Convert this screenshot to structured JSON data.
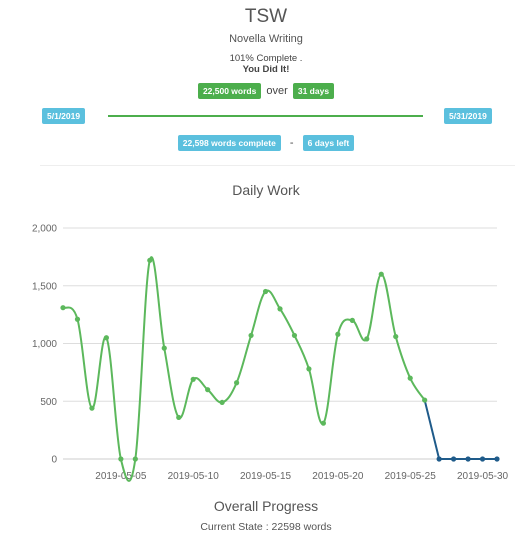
{
  "header": {
    "title": "TSW",
    "subtitle": "Novella Writing",
    "percent_complete": "101% Complete .",
    "congrats": "You Did It!"
  },
  "goal": {
    "words_badge": "22,500 words",
    "over_text": "over",
    "days_badge": "31 days",
    "start_date": "5/1/2019",
    "end_date": "5/31/2019"
  },
  "status": {
    "complete_badge": "22,598 words complete",
    "dash": "-",
    "left_badge": "6 days left"
  },
  "colors": {
    "green": "#4cae4c",
    "blue": "#5bc0de",
    "line_actual": "#5cb85c",
    "line_future": "#1f5b8a"
  },
  "chart_title": "Daily Work",
  "chart_data": {
    "type": "line",
    "title": "Daily Work",
    "xlabel": "",
    "ylabel": "",
    "ylim": [
      0,
      2000
    ],
    "y_ticks": [
      "0",
      "500",
      "1,000",
      "1,500",
      "2,000"
    ],
    "y_tick_values": [
      0,
      500,
      1000,
      1500,
      2000
    ],
    "x_ticks": [
      "2019-05-05",
      "2019-05-10",
      "2019-05-15",
      "2019-05-20",
      "2019-05-25",
      "2019-05-30"
    ],
    "x_tick_dates": [
      "2019-05-05",
      "2019-05-10",
      "2019-05-15",
      "2019-05-20",
      "2019-05-25",
      "2019-05-30"
    ],
    "x_range": [
      "2019-05-01",
      "2019-05-31"
    ],
    "grid": true,
    "series": [
      {
        "x": [
          "2019-05-01",
          "2019-05-02",
          "2019-05-03",
          "2019-05-04",
          "2019-05-05",
          "2019-05-06",
          "2019-05-07",
          "2019-05-08",
          "2019-05-09",
          "2019-05-10",
          "2019-05-11",
          "2019-05-12",
          "2019-05-13",
          "2019-05-14",
          "2019-05-15",
          "2019-05-16",
          "2019-05-17",
          "2019-05-18",
          "2019-05-19",
          "2019-05-20",
          "2019-05-21",
          "2019-05-22",
          "2019-05-23",
          "2019-05-24",
          "2019-05-25",
          "2019-05-26"
        ],
        "values": [
          1310,
          1210,
          440,
          1050,
          0,
          0,
          1720,
          960,
          360,
          690,
          600,
          490,
          660,
          1070,
          1450,
          1300,
          1070,
          780,
          310,
          1080,
          1200,
          1040,
          1600,
          1060,
          700,
          510
        ]
      },
      {
        "x": [
          "2019-05-26",
          "2019-05-27",
          "2019-05-28",
          "2019-05-29",
          "2019-05-30",
          "2019-05-31"
        ],
        "values": [
          510,
          0,
          0,
          0,
          0,
          0
        ]
      }
    ]
  },
  "overall": {
    "title": "Overall Progress",
    "current_state": "Current State : 22598 words"
  }
}
